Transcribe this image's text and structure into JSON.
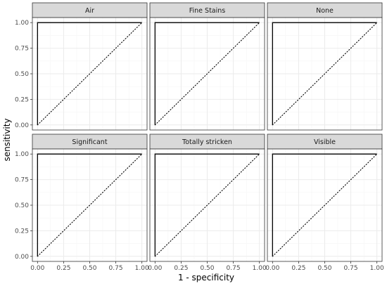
{
  "chart_data": {
    "type": "line",
    "subtype": "faceted-roc",
    "xlabel": "1 - specificity",
    "ylabel": "sensitivity",
    "xlim": [
      0,
      1
    ],
    "ylim": [
      0,
      1
    ],
    "x_ticks": [
      "0.00",
      "0.25",
      "0.50",
      "0.75",
      "1.00"
    ],
    "y_ticks": [
      "0.00",
      "0.25",
      "0.50",
      "0.75",
      "1.00"
    ],
    "grid": true,
    "facets": [
      {
        "label": "Air",
        "roc_curve": {
          "x": [
            0,
            0,
            1
          ],
          "y": [
            0,
            1,
            1
          ]
        },
        "reference_line": {
          "x": [
            0,
            1
          ],
          "y": [
            0,
            1
          ]
        }
      },
      {
        "label": "Fine Stains",
        "roc_curve": {
          "x": [
            0,
            0,
            1
          ],
          "y": [
            0,
            1,
            1
          ]
        },
        "reference_line": {
          "x": [
            0,
            1
          ],
          "y": [
            0,
            1
          ]
        }
      },
      {
        "label": "None",
        "roc_curve": {
          "x": [
            0,
            0,
            1
          ],
          "y": [
            0,
            1,
            1
          ]
        },
        "reference_line": {
          "x": [
            0,
            1
          ],
          "y": [
            0,
            1
          ]
        }
      },
      {
        "label": "Significant",
        "roc_curve": {
          "x": [
            0,
            0,
            1
          ],
          "y": [
            0,
            1,
            1
          ]
        },
        "reference_line": {
          "x": [
            0,
            1
          ],
          "y": [
            0,
            1
          ]
        }
      },
      {
        "label": "Totally stricken",
        "roc_curve": {
          "x": [
            0,
            0,
            1
          ],
          "y": [
            0,
            1,
            1
          ]
        },
        "reference_line": {
          "x": [
            0,
            1
          ],
          "y": [
            0,
            1
          ]
        }
      },
      {
        "label": "Visible",
        "roc_curve": {
          "x": [
            0,
            0,
            1
          ],
          "y": [
            0,
            1,
            1
          ]
        },
        "reference_line": {
          "x": [
            0,
            1
          ],
          "y": [
            0,
            1
          ]
        }
      }
    ],
    "colors": {
      "panel_border": "#333333",
      "strip_fill": "#d9d9d9",
      "grid_major": "#ebebeb",
      "grid_minor": "#f5f5f5",
      "curve": "#000000",
      "tick_text": "#4d4d4d"
    }
  }
}
